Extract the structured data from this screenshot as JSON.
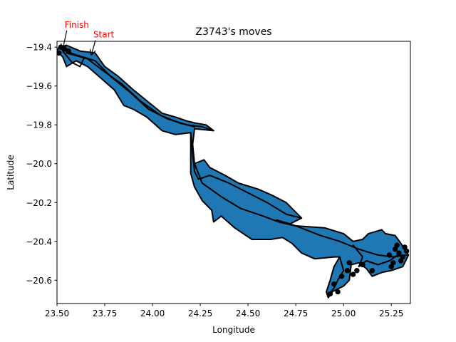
{
  "chart_data": {
    "type": "area",
    "title": "Z3743's moves",
    "xlabel": "Longitude",
    "ylabel": "Latitude",
    "xlim": [
      23.5,
      25.35
    ],
    "ylim": [
      -20.72,
      -19.37
    ],
    "xticks": [
      23.5,
      23.75,
      24.0,
      24.25,
      24.5,
      24.75,
      25.0,
      25.25
    ],
    "xtick_labels": [
      "23.50",
      "23.75",
      "24.00",
      "24.25",
      "24.50",
      "24.75",
      "25.00",
      "25.25"
    ],
    "yticks": [
      -19.4,
      -19.6,
      -19.8,
      -20.0,
      -20.2,
      -20.4,
      -20.6
    ],
    "ytick_labels": [
      "−19.4",
      "−19.6",
      "−19.8",
      "−20.0",
      "−20.2",
      "−20.4",
      "−20.6"
    ],
    "fill_color": "#1f77b4",
    "edge_color": "#000000",
    "annotation_color": "#ff0000",
    "annotations": [
      {
        "text": "Finish",
        "point": [
          23.53,
          -19.41
        ],
        "text_pos": [
          23.54,
          -19.3
        ]
      },
      {
        "text": "Start",
        "point": [
          23.68,
          -19.44
        ],
        "text_pos": [
          23.69,
          -19.35
        ]
      }
    ],
    "region": [
      [
        23.51,
        -19.4
      ],
      [
        23.55,
        -19.39
      ],
      [
        23.62,
        -19.42
      ],
      [
        23.7,
        -19.43
      ],
      [
        23.75,
        -19.5
      ],
      [
        23.82,
        -19.55
      ],
      [
        23.9,
        -19.62
      ],
      [
        24.0,
        -19.7
      ],
      [
        24.05,
        -19.74
      ],
      [
        24.12,
        -19.76
      ],
      [
        24.18,
        -19.78
      ],
      [
        24.22,
        -19.79
      ],
      [
        24.28,
        -19.8
      ],
      [
        24.32,
        -19.83
      ],
      [
        24.22,
        -19.82
      ],
      [
        24.21,
        -19.9
      ],
      [
        24.22,
        -20.0
      ],
      [
        24.27,
        -19.98
      ],
      [
        24.3,
        -20.02
      ],
      [
        24.38,
        -20.06
      ],
      [
        24.45,
        -20.1
      ],
      [
        24.55,
        -20.13
      ],
      [
        24.62,
        -20.16
      ],
      [
        24.7,
        -20.2
      ],
      [
        24.78,
        -20.28
      ],
      [
        24.72,
        -20.31
      ],
      [
        24.65,
        -20.29
      ],
      [
        24.75,
        -20.32
      ],
      [
        24.9,
        -20.33
      ],
      [
        25.0,
        -20.36
      ],
      [
        25.05,
        -20.4
      ],
      [
        25.1,
        -20.39
      ],
      [
        25.13,
        -20.36
      ],
      [
        25.2,
        -20.34
      ],
      [
        25.22,
        -20.36
      ],
      [
        25.27,
        -20.37
      ],
      [
        25.3,
        -20.41
      ],
      [
        25.34,
        -20.47
      ],
      [
        25.31,
        -20.53
      ],
      [
        25.25,
        -20.55
      ],
      [
        25.2,
        -20.56
      ],
      [
        25.15,
        -20.58
      ],
      [
        25.12,
        -20.54
      ],
      [
        25.08,
        -20.51
      ],
      [
        25.04,
        -20.52
      ],
      [
        25.03,
        -20.6
      ],
      [
        25.0,
        -20.63
      ],
      [
        24.96,
        -20.65
      ],
      [
        24.94,
        -20.66
      ],
      [
        24.92,
        -20.69
      ],
      [
        24.91,
        -20.66
      ],
      [
        24.93,
        -20.6
      ],
      [
        24.95,
        -20.53
      ],
      [
        24.98,
        -20.48
      ],
      [
        24.95,
        -20.48
      ],
      [
        24.85,
        -20.49
      ],
      [
        24.78,
        -20.46
      ],
      [
        24.73,
        -20.41
      ],
      [
        24.68,
        -20.38
      ],
      [
        24.62,
        -20.39
      ],
      [
        24.52,
        -20.39
      ],
      [
        24.43,
        -20.33
      ],
      [
        24.36,
        -20.27
      ],
      [
        24.32,
        -20.3
      ],
      [
        24.31,
        -20.24
      ],
      [
        24.26,
        -20.19
      ],
      [
        24.22,
        -20.12
      ],
      [
        24.2,
        -20.05
      ],
      [
        24.2,
        -19.95
      ],
      [
        24.2,
        -19.84
      ],
      [
        24.12,
        -19.85
      ],
      [
        24.05,
        -19.83
      ],
      [
        23.97,
        -19.76
      ],
      [
        23.9,
        -19.72
      ],
      [
        23.85,
        -19.7
      ],
      [
        23.8,
        -19.62
      ],
      [
        23.73,
        -19.56
      ],
      [
        23.66,
        -19.5
      ],
      [
        23.6,
        -19.47
      ],
      [
        23.55,
        -19.5
      ],
      [
        23.53,
        -19.45
      ],
      [
        23.5,
        -19.42
      ]
    ],
    "tracks": [
      [
        [
          23.52,
          -19.41
        ],
        [
          23.6,
          -19.44
        ],
        [
          23.7,
          -19.47
        ],
        [
          23.78,
          -19.55
        ],
        [
          23.88,
          -19.63
        ],
        [
          23.98,
          -19.72
        ],
        [
          24.08,
          -19.77
        ],
        [
          24.18,
          -19.8
        ],
        [
          24.26,
          -19.81
        ],
        [
          24.32,
          -19.83
        ]
      ],
      [
        [
          23.55,
          -19.43
        ],
        [
          23.66,
          -19.46
        ],
        [
          23.74,
          -19.52
        ],
        [
          23.84,
          -19.59
        ],
        [
          23.94,
          -19.68
        ],
        [
          24.04,
          -19.75
        ],
        [
          24.14,
          -19.79
        ],
        [
          24.22,
          -19.81
        ]
      ],
      [
        [
          24.2,
          -19.84
        ],
        [
          24.21,
          -19.95
        ],
        [
          24.22,
          -20.04
        ],
        [
          24.24,
          -20.08
        ],
        [
          24.3,
          -20.06
        ],
        [
          24.4,
          -20.1
        ],
        [
          24.5,
          -20.15
        ],
        [
          24.6,
          -20.2
        ],
        [
          24.7,
          -20.26
        ],
        [
          24.78,
          -20.28
        ]
      ],
      [
        [
          24.22,
          -20.0
        ],
        [
          24.26,
          -20.1
        ],
        [
          24.36,
          -20.17
        ],
        [
          24.46,
          -20.23
        ],
        [
          24.58,
          -20.27
        ],
        [
          24.66,
          -20.3
        ],
        [
          24.75,
          -20.32
        ]
      ],
      [
        [
          24.75,
          -20.32
        ],
        [
          24.88,
          -20.37
        ],
        [
          24.98,
          -20.4
        ],
        [
          25.08,
          -20.44
        ],
        [
          25.18,
          -20.47
        ],
        [
          25.26,
          -20.48
        ],
        [
          25.33,
          -20.47
        ]
      ],
      [
        [
          25.05,
          -20.42
        ],
        [
          25.1,
          -20.48
        ],
        [
          25.08,
          -20.53
        ],
        [
          25.12,
          -20.5
        ],
        [
          25.18,
          -20.52
        ],
        [
          25.24,
          -20.5
        ],
        [
          25.3,
          -20.46
        ]
      ],
      [
        [
          24.98,
          -20.48
        ],
        [
          25.0,
          -20.55
        ],
        [
          24.97,
          -20.6
        ],
        [
          24.95,
          -20.64
        ],
        [
          24.92,
          -20.68
        ]
      ],
      [
        [
          23.53,
          -19.42
        ],
        [
          23.58,
          -19.48
        ],
        [
          23.62,
          -19.5
        ],
        [
          23.64,
          -19.46
        ]
      ]
    ],
    "cluster_points": [
      [
        25.27,
        -20.44
      ],
      [
        25.29,
        -20.46
      ],
      [
        25.31,
        -20.48
      ],
      [
        25.33,
        -20.45
      ],
      [
        25.3,
        -20.5
      ],
      [
        25.26,
        -20.51
      ],
      [
        25.24,
        -20.47
      ],
      [
        25.28,
        -20.42
      ],
      [
        25.32,
        -20.43
      ],
      [
        25.25,
        -20.53
      ],
      [
        25.02,
        -20.55
      ],
      [
        25.05,
        -20.57
      ],
      [
        25.07,
        -20.55
      ],
      [
        24.99,
        -20.58
      ],
      [
        25.03,
        -20.51
      ],
      [
        24.95,
        -20.62
      ],
      [
        24.97,
        -20.66
      ],
      [
        24.93,
        -20.67
      ],
      [
        25.1,
        -20.52
      ],
      [
        25.15,
        -20.55
      ],
      [
        23.52,
        -19.4
      ],
      [
        23.54,
        -19.41
      ],
      [
        23.56,
        -19.42
      ],
      [
        23.51,
        -19.43
      ]
    ]
  }
}
